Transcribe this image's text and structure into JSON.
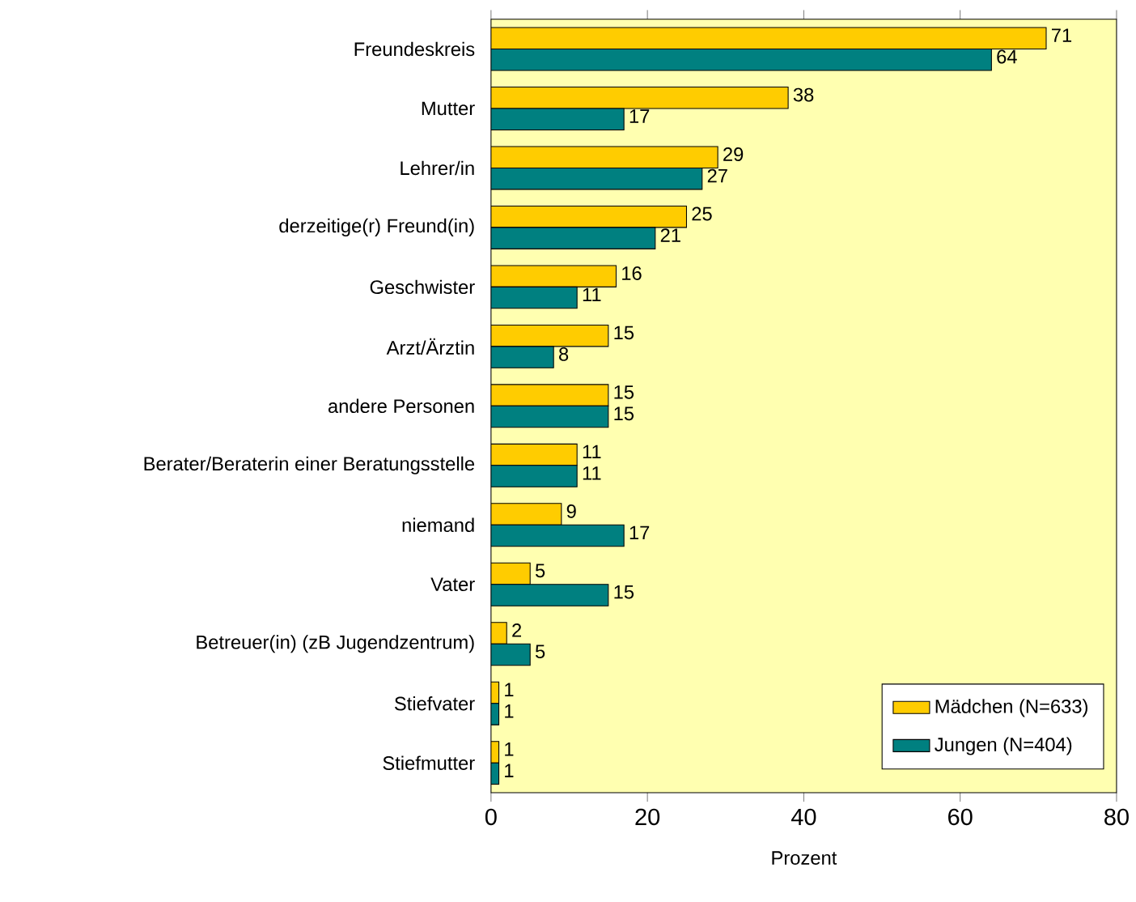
{
  "chart_data": {
    "type": "bar",
    "orientation": "horizontal",
    "xlabel": "Prozent",
    "categories": [
      "Freundeskreis",
      "Mutter",
      "Lehrer/in",
      "derzeitige(r) Freund(in)",
      "Geschwister",
      "Arzt/Ärztin",
      "andere Personen",
      "Berater/Beraterin einer Beratungsstelle",
      "niemand",
      "Vater",
      "Betreuer(in) (zB Jugendzentrum)",
      "Stiefvater",
      "Stiefmutter"
    ],
    "series": [
      {
        "name": "Mädchen (N=633)",
        "color": "#ffcc00",
        "values": [
          71,
          38,
          29,
          25,
          16,
          15,
          15,
          11,
          9,
          5,
          2,
          1,
          1
        ]
      },
      {
        "name": "Jungen (N=404)",
        "color": "#008080",
        "values": [
          64,
          17,
          27,
          21,
          11,
          8,
          15,
          11,
          17,
          15,
          5,
          1,
          1
        ]
      }
    ],
    "xlim": [
      0,
      80
    ],
    "xticks": [
      0,
      20,
      40,
      60,
      80
    ],
    "data_labels": true,
    "legend": "bottom right",
    "grid": false
  }
}
